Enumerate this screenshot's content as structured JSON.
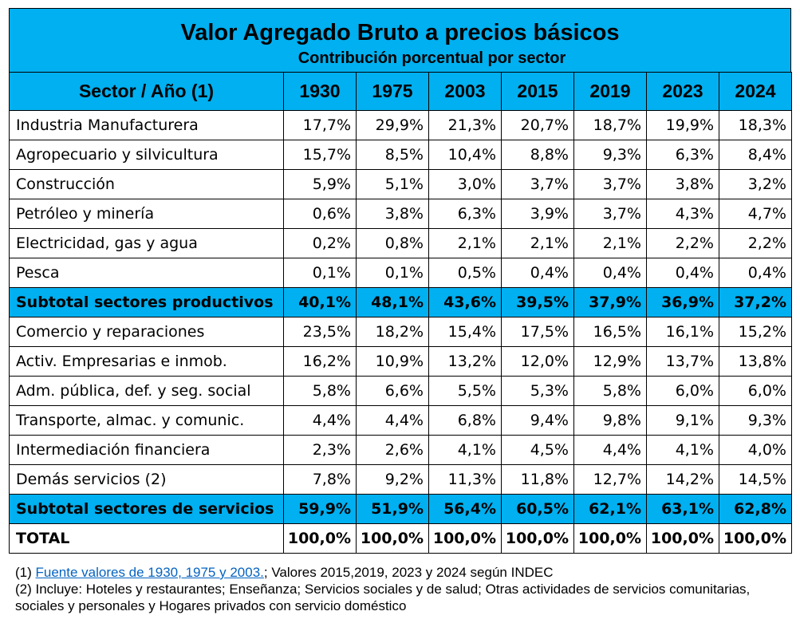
{
  "title": "Valor Agregado Bruto a precios básicos",
  "subtitle": "Contribución porcentual por sector",
  "header": {
    "sector_label": "Sector / Año (1)",
    "years": [
      "1930",
      "1975",
      "2003",
      "2015",
      "2019",
      "2023",
      "2024"
    ]
  },
  "rows": [
    {
      "type": "normal",
      "name": "Industria Manufacturera",
      "values": [
        "17,7%",
        "29,9%",
        "21,3%",
        "20,7%",
        "18,7%",
        "19,9%",
        "18,3%"
      ]
    },
    {
      "type": "normal",
      "name": "Agropecuario y silvicultura",
      "values": [
        "15,7%",
        "8,5%",
        "10,4%",
        "8,8%",
        "9,3%",
        "6,3%",
        "8,4%"
      ]
    },
    {
      "type": "normal",
      "name": "Construcción",
      "values": [
        "5,9%",
        "5,1%",
        "3,0%",
        "3,7%",
        "3,7%",
        "3,8%",
        "3,2%"
      ]
    },
    {
      "type": "normal",
      "name": "Petróleo y minería",
      "values": [
        "0,6%",
        "3,8%",
        "6,3%",
        "3,9%",
        "3,7%",
        "4,3%",
        "4,7%"
      ]
    },
    {
      "type": "normal",
      "name": "Electricidad, gas y agua",
      "values": [
        "0,2%",
        "0,8%",
        "2,1%",
        "2,1%",
        "2,1%",
        "2,2%",
        "2,2%"
      ]
    },
    {
      "type": "normal",
      "name": "Pesca",
      "values": [
        "0,1%",
        "0,1%",
        "0,5%",
        "0,4%",
        "0,4%",
        "0,4%",
        "0,4%"
      ]
    },
    {
      "type": "sub",
      "name": "Subtotal sectores productivos",
      "values": [
        "40,1%",
        "48,1%",
        "43,6%",
        "39,5%",
        "37,9%",
        "36,9%",
        "37,2%"
      ]
    },
    {
      "type": "normal",
      "name": "Comercio y reparaciones",
      "values": [
        "23,5%",
        "18,2%",
        "15,4%",
        "17,5%",
        "16,5%",
        "16,1%",
        "15,2%"
      ]
    },
    {
      "type": "normal",
      "name": "Activ. Empresarias e inmob.",
      "values": [
        "16,2%",
        "10,9%",
        "13,2%",
        "12,0%",
        "12,9%",
        "13,7%",
        "13,8%"
      ]
    },
    {
      "type": "normal",
      "name": "Adm. pública, def. y seg. social",
      "values": [
        "5,8%",
        "6,6%",
        "5,5%",
        "5,3%",
        "5,8%",
        "6,0%",
        "6,0%"
      ]
    },
    {
      "type": "normal",
      "name": "Transporte, almac. y comunic.",
      "values": [
        "4,4%",
        "4,4%",
        "6,8%",
        "9,4%",
        "9,8%",
        "9,1%",
        "9,3%"
      ]
    },
    {
      "type": "normal",
      "name": "Intermediación financiera",
      "values": [
        "2,3%",
        "2,6%",
        "4,1%",
        "4,5%",
        "4,4%",
        "4,1%",
        "4,0%"
      ]
    },
    {
      "type": "normal",
      "name": "Demás servicios (2)",
      "values": [
        "7,8%",
        "9,2%",
        "11,3%",
        "11,8%",
        "12,7%",
        "14,2%",
        "14,5%"
      ]
    },
    {
      "type": "sub",
      "name": "Subtotal sectores de servicios",
      "values": [
        "59,9%",
        "51,9%",
        "56,4%",
        "60,5%",
        "62,1%",
        "63,1%",
        "62,8%"
      ]
    },
    {
      "type": "total",
      "name": "TOTAL",
      "values": [
        "100,0%",
        "100,0%",
        "100,0%",
        "100,0%",
        "100,0%",
        "100,0%",
        "100,0%"
      ]
    }
  ],
  "notes": {
    "note1_prefix": "(1) ",
    "note1_link": "Fuente valores de 1930, 1975 y 2003.",
    "note1_rest": "; Valores 2015,2019, 2023 y 2024 según INDEC",
    "note2": "(2) Incluye: Hoteles y restaurantes; Enseñanza; Servicios sociales y de salud; Otras actividades de servicios comunitarias, sociales y personales y Hogares privados con servicio doméstico"
  },
  "colors": {
    "header_bg": "#00b0f0",
    "link": "#0563c1"
  }
}
